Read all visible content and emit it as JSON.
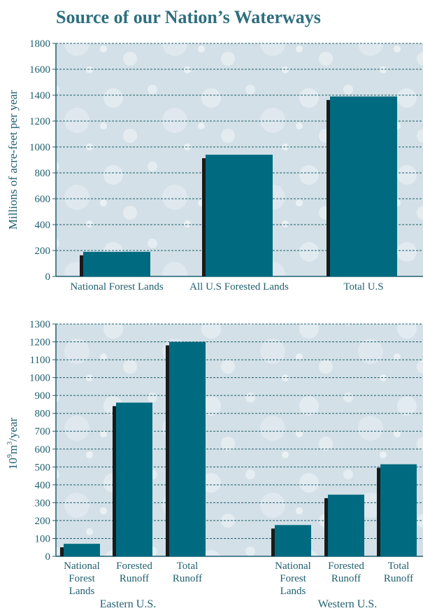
{
  "page_title": "Source of our Nation’s Waterways",
  "colors": {
    "title": "#2e6f7f",
    "axis_text": "#1f5f6f",
    "bar": "#006b80",
    "bar_shadow": "#1a1a1a",
    "plot_bg": "#d3e0e7",
    "grid": "#1f5f6f"
  },
  "chart_data": [
    {
      "type": "bar",
      "title": "",
      "ylabel": "Millions of acre-feet per year",
      "ylim": [
        0,
        1800
      ],
      "yticks": [
        0,
        200,
        400,
        600,
        800,
        1000,
        1200,
        1400,
        1600,
        1800
      ],
      "grid": true,
      "categories": [
        "National Forest Lands",
        "All U.S Forested Lands",
        "Total U.S"
      ],
      "values": [
        190,
        940,
        1390
      ]
    },
    {
      "type": "bar",
      "title": "",
      "ylabel_base": "10",
      "ylabel_exp1": "9",
      "ylabel_unit": "m",
      "ylabel_exp2": "3",
      "ylabel_tail": "/year",
      "ylim": [
        0,
        1300
      ],
      "yticks": [
        0,
        100,
        200,
        300,
        400,
        500,
        600,
        700,
        800,
        900,
        1000,
        1100,
        1200,
        1300
      ],
      "grid": true,
      "groups": [
        {
          "name": "Eastern U.S.",
          "categories": [
            [
              "National",
              "Forest",
              "Lands"
            ],
            [
              "Forested",
              "Runoff"
            ],
            [
              "Total",
              "Runoff"
            ]
          ],
          "values": [
            70,
            860,
            1200
          ]
        },
        {
          "name": "Western U.S.",
          "categories": [
            [
              "National",
              "Forest",
              "Lands"
            ],
            [
              "Forested",
              "Runoff"
            ],
            [
              "Total",
              "Runoff"
            ]
          ],
          "values": [
            175,
            345,
            515
          ]
        }
      ]
    }
  ]
}
